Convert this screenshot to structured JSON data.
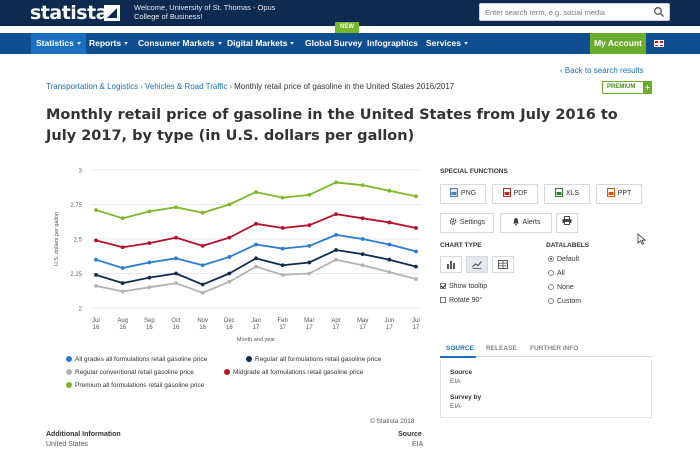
{
  "header": {
    "logo": "statista",
    "welcome_line1": "Welcome, University of St. Thomas - Opus",
    "welcome_line2": "College of Business!",
    "search_placeholder": "Enter search term, e.g. social media"
  },
  "nav": {
    "items": [
      {
        "label": "Statistics"
      },
      {
        "label": "Reports"
      },
      {
        "label": "Consumer Markets"
      },
      {
        "label": "Digital Markets"
      },
      {
        "label": "Global Survey"
      },
      {
        "label": "Infographics"
      },
      {
        "label": "Services"
      }
    ],
    "new_badge": "NEW",
    "my_account": "My Account"
  },
  "breadcrumb": {
    "items": [
      "Transportation & Logistics",
      "Vehicles & Road Traffic"
    ],
    "current": "Monthly retail price of gasoline in the United States 2016/2017"
  },
  "back_link": "‹ Back to search results",
  "premium_badge": "PREMIUM",
  "title": "Monthly retail price of gasoline in the United States from July 2016 to July 2017, by type (in U.S. dollars per gallon)",
  "chart_data": {
    "type": "line",
    "categories": [
      "Jul 16",
      "Aug 16",
      "Sep 16",
      "Oct 16",
      "Nov 16",
      "Dec 16",
      "Jan 17",
      "Feb 17",
      "Mar 17",
      "Apr 17",
      "May 17",
      "Jun 17",
      "Jul 17"
    ],
    "xlabel": "Month and year",
    "ylabel": "U.S. dollars per gallon",
    "ylim": [
      2,
      3
    ],
    "yticks": [
      "2",
      "2.25",
      "2.5",
      "2.75",
      "3"
    ],
    "grid": true,
    "legend_position": "bottom",
    "series": [
      {
        "name": "All grades all formulations retail gasoline price",
        "color": "#2b7bd6",
        "values": [
          2.35,
          2.29,
          2.33,
          2.36,
          2.31,
          2.37,
          2.46,
          2.43,
          2.45,
          2.53,
          2.5,
          2.46,
          2.41
        ]
      },
      {
        "name": "Regular all formulations retail gasoline price",
        "color": "#0d2b4e",
        "values": [
          2.24,
          2.18,
          2.22,
          2.25,
          2.17,
          2.25,
          2.36,
          2.31,
          2.33,
          2.42,
          2.39,
          2.35,
          2.3
        ]
      },
      {
        "name": "Regular conventional retail gasoline price",
        "color": "#b3b3b3",
        "values": [
          2.16,
          2.12,
          2.15,
          2.18,
          2.11,
          2.19,
          2.3,
          2.24,
          2.25,
          2.35,
          2.31,
          2.26,
          2.21
        ]
      },
      {
        "name": "Midgrade all formulations retail gasoline price",
        "color": "#b5122a",
        "values": [
          2.49,
          2.44,
          2.47,
          2.51,
          2.45,
          2.51,
          2.61,
          2.58,
          2.6,
          2.68,
          2.65,
          2.62,
          2.58
        ]
      },
      {
        "name": "Premium all formulations retail gasoline price",
        "color": "#7ab928",
        "values": [
          2.71,
          2.65,
          2.7,
          2.73,
          2.69,
          2.75,
          2.84,
          2.8,
          2.82,
          2.91,
          2.89,
          2.85,
          2.81
        ]
      }
    ]
  },
  "copyright": "© Statista 2018",
  "additional_info": {
    "label": "Additional Information",
    "value": "United States"
  },
  "source_footer": {
    "label": "Source",
    "value": "EIA"
  },
  "side": {
    "special_functions": "SPECIAL FUNCTIONS",
    "buttons": {
      "png": "PNG",
      "pdf": "PDF",
      "xls": "XLS",
      "ppt": "PPT",
      "settings": "Settings",
      "alerts": "Alerts"
    },
    "chart_type": "CHART TYPE",
    "datalabels": "DATALABELS",
    "show_tooltip": "Show tooltip",
    "rotate": "Rotate 90°",
    "datalabel_options": [
      "Default",
      "All",
      "None",
      "Custom"
    ],
    "tabs": [
      "SOURCE",
      "RELEASE",
      "FURTHER INFO"
    ],
    "source_label": "Source",
    "source_value": "EIA",
    "survey_label": "Survey by",
    "survey_value": "EIA"
  },
  "colors": {
    "header_bg": "#0d2b4e",
    "nav_bg": "#0f4f8f",
    "accent": "#1b6fc0",
    "green": "#6aac2b"
  }
}
